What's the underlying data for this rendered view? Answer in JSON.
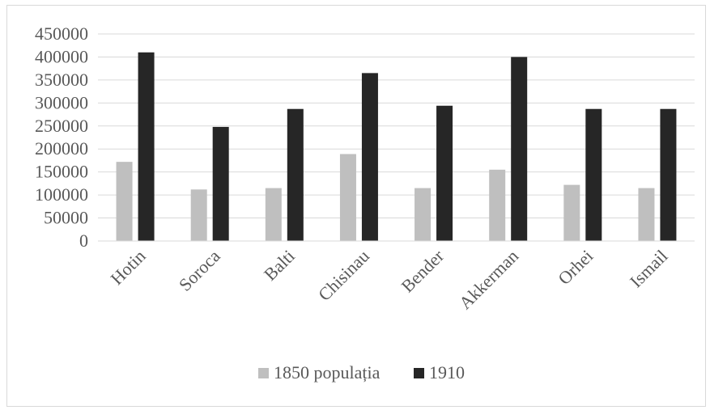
{
  "chart_data": {
    "type": "bar",
    "title": "",
    "xlabel": "",
    "ylabel": "",
    "categories": [
      "Hotin",
      "Soroca",
      "Balti",
      "Chisinau",
      "Bender",
      "Akkerman",
      "Orhei",
      "Ismail"
    ],
    "series": [
      {
        "name": "1850 populația",
        "color": "#bfbfbf",
        "values": [
          172000,
          112000,
          115000,
          189000,
          115000,
          155000,
          122000,
          115000
        ]
      },
      {
        "name": "1910",
        "color": "#262626",
        "values": [
          410000,
          248000,
          287000,
          365000,
          294000,
          400000,
          287000,
          287000
        ]
      }
    ],
    "ylim": [
      0,
      450000
    ],
    "yticks": [
      "0",
      "50000",
      "100000",
      "150000",
      "200000",
      "250000",
      "300000",
      "350000",
      "400000",
      "450000"
    ],
    "grid": true,
    "legend_position": "bottom"
  }
}
